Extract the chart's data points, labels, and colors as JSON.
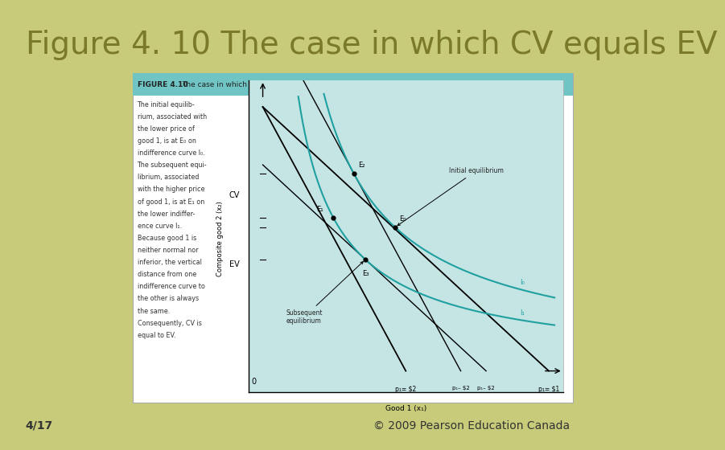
{
  "title": "Figure 4. 10 The case in which CV equals EV",
  "title_color": "#7a7a2a",
  "title_fontsize": 28,
  "bg_color": "#c8cc7a",
  "footer_left": "4/17",
  "footer_right": "© 2009 Pearson Education Canada",
  "footer_color": "#333333",
  "footer_fontsize": 10,
  "inner_box_bg": "#ffffff",
  "header_bg": "#70c4c4",
  "header_text_left": "FIGURE 4.10",
  "header_text_right": "The case in which CV equals EV",
  "graph_bg": "#c5e4e4",
  "body_text_lines": [
    "The initial equilib-",
    "rium, associated with",
    "the lower price of",
    "good 1, is at E₀ on",
    "indifference curve I₀.",
    "The subsequent equi-",
    "librium, associated",
    "with the higher price",
    "of good 1, is at E₁ on",
    "the lower indiffer-",
    "ence curve I₁.",
    "Because good 1 is",
    "neither normal nor",
    "inferior, the vertical",
    "distance from one",
    "indifference curve to",
    "the other is always",
    "the same.",
    "Consequently, CV is",
    "equal to EV."
  ],
  "cv_label": "CV",
  "ev_label": "EV",
  "xlabel": "Good 1 (x₁)",
  "ylabel": "Composite good 2 (x₂)",
  "initial_eq_label": "Initial equilibrium",
  "subseq_eq_label": "Subsequent\nequilibrium",
  "I0_label": "I₀",
  "I1_label": "I₁",
  "E0_label": "E₀",
  "E1_label": "E₁",
  "E2_label": "E₂",
  "E3_label": "E₃",
  "p1_dollar1_label": "p₁= $1",
  "p1_dollar2_label": "p₁= $2",
  "p1_dash2_label1": "p₁– $2",
  "p1_dash2_label2": "p₁– $2",
  "p1_dash1_label": "p₁= $1",
  "p1_dash2_top": "p₁– $2",
  "p1_dash1_top": "p₁= $1"
}
